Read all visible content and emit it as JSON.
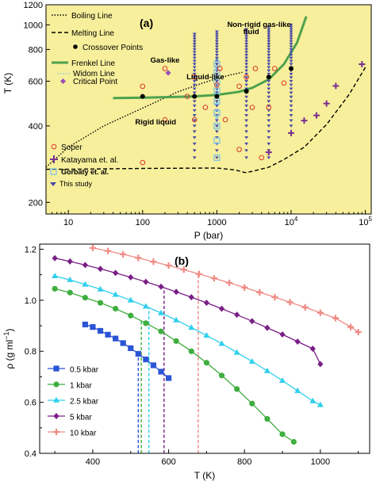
{
  "chart_data": [
    {
      "type": "scatter",
      "panel_label": "(a)",
      "xlabel": "P (bar)",
      "ylabel": "T (K)",
      "xscale": "log",
      "yscale": "log",
      "xlim": [
        5,
        120000
      ],
      "ylim": [
        180,
        1200
      ],
      "background": "#f7ef9b",
      "x_ticks": [
        {
          "v": 10,
          "label": "10"
        },
        {
          "v": 100,
          "label": "100"
        },
        {
          "v": 1000,
          "label": "1000"
        },
        {
          "v": 10000,
          "label": "10",
          "exp": "4"
        },
        {
          "v": 100000,
          "label": "10",
          "exp": "5"
        }
      ],
      "y_ticks": [
        {
          "v": 200,
          "label": "200"
        },
        {
          "v": 400,
          "label": "400"
        },
        {
          "v": 600,
          "label": "600"
        },
        {
          "v": 800,
          "label": "800"
        },
        {
          "v": 1000,
          "label": "1000"
        },
        {
          "v": 1200,
          "label": "1200"
        }
      ],
      "legend_top": [
        {
          "label": "Boiling Line",
          "style": "dotted-line",
          "color": "#000000"
        },
        {
          "label": "Melting Line",
          "style": "dashed-line",
          "color": "#000000"
        },
        {
          "label": "Crossover Points",
          "style": "dot",
          "color": "#000000"
        },
        {
          "label": "Frenkel Line",
          "style": "line",
          "color": "#4ea24e"
        },
        {
          "label": "Widom Line",
          "style": "x-dashed",
          "color": "#7fc6e6"
        },
        {
          "label": "Critical Point",
          "style": "diamond",
          "color": "#9a4fb8"
        }
      ],
      "legend_bottom": [
        {
          "label": "Soper",
          "style": "open-circle",
          "color": "#d9342b"
        },
        {
          "label": "Katayama et. al.",
          "style": "plus",
          "color": "#7b2f8f"
        },
        {
          "label": "Gorbaty et. al.",
          "style": "open-square",
          "color": "#7fc6e6",
          "bold": true
        },
        {
          "label": "This study",
          "style": "triangle-down",
          "color": "#4a4aa8"
        }
      ],
      "annotations": [
        {
          "text": "Gas-like",
          "x": 200,
          "y": 710
        },
        {
          "text": "Liquid-like",
          "x": 700,
          "y": 610
        },
        {
          "text": "Non-rigid gas-like",
          "x": 3700,
          "y": 980
        },
        {
          "text": "fluid",
          "x": 2900,
          "y": 920
        },
        {
          "text": "Rigid liquid",
          "x": 150,
          "y": 405
        }
      ],
      "boiling_line": {
        "x": [
          5,
          10,
          30,
          100,
          300,
          700,
          1500,
          2200
        ],
        "y": [
          275,
          330,
          400,
          470,
          545,
          595,
          635,
          650
        ]
      },
      "melting_line": {
        "x": [
          5,
          10,
          100,
          1000,
          1800,
          2400,
          3000,
          5000,
          8000,
          15000,
          30000,
          60000,
          100000
        ],
        "y": [
          270,
          270,
          272,
          273,
          268,
          262,
          265,
          275,
          295,
          330,
          405,
          530,
          680
        ]
      },
      "frenkel_line": {
        "x": [
          40,
          100,
          200,
          500,
          1000,
          2000,
          3000,
          5000,
          8000,
          12000,
          16000
        ],
        "y": [
          515,
          517,
          519,
          523,
          530,
          545,
          565,
          610,
          700,
          850,
          1080
        ]
      },
      "critical_point": {
        "x": 221,
        "y": 647
      },
      "crossover_points": {
        "x": [
          100,
          500,
          1000,
          2500,
          5000,
          10000
        ],
        "y": [
          523,
          523,
          523,
          548,
          623,
          673
        ]
      },
      "widom_line": {
        "x": 1000,
        "y": [
          400,
          430,
          460,
          490,
          520,
          550,
          580,
          610,
          640,
          670,
          700,
          730
        ]
      },
      "soper": {
        "x": [
          100,
          100,
          200,
          200,
          400,
          500,
          500,
          700,
          1000,
          1100,
          1300,
          2000,
          2000,
          2500,
          3000,
          3300,
          4000,
          5000,
          6000,
          8000
        ],
        "y": [
          573,
          287,
          423,
          673,
          523,
          423,
          623,
          473,
          580,
          673,
          423,
          573,
          323,
          623,
          473,
          673,
          300,
          473,
          673,
          590
        ]
      },
      "katayama": {
        "x": [
          5000,
          10000,
          15000,
          22000,
          30000,
          40000,
          90000
        ],
        "y": [
          315,
          375,
          420,
          440,
          490,
          575,
          700
        ]
      },
      "gorbaty": {
        "x": 1000,
        "y": [
          300,
          350,
          400,
          450,
          500,
          550,
          600,
          650,
          700
        ]
      },
      "this_study": [
        {
          "x": 500,
          "y": [
            300,
            320,
            340,
            360,
            380,
            400,
            420,
            440,
            460,
            480,
            500,
            520,
            540,
            560,
            580,
            600,
            620,
            640,
            660,
            680,
            700,
            720,
            740,
            760,
            780,
            800,
            820,
            840,
            860,
            880,
            900,
            920
          ]
        },
        {
          "x": 1000,
          "y": [
            300,
            320,
            340,
            360,
            380,
            400,
            420,
            440,
            460,
            480,
            500,
            520,
            540,
            560,
            580,
            600,
            620,
            640,
            660,
            680,
            700,
            720,
            740,
            760,
            780,
            800,
            820,
            840,
            860,
            880,
            900,
            920,
            940
          ]
        },
        {
          "x": 2500,
          "y": [
            300,
            320,
            340,
            360,
            380,
            400,
            420,
            440,
            460,
            480,
            500,
            520,
            540,
            560,
            580,
            600,
            620,
            640,
            660,
            680,
            700,
            720,
            740,
            760,
            780,
            800,
            820,
            840,
            860,
            880,
            900,
            920,
            940,
            960
          ]
        },
        {
          "x": 5000,
          "y": [
            300,
            320,
            340,
            360,
            380,
            400,
            420,
            440,
            460,
            480,
            500,
            520,
            540,
            560,
            580,
            600,
            620,
            640,
            660,
            680,
            700,
            720,
            740,
            760,
            780,
            800,
            820,
            840,
            860,
            880,
            900,
            920,
            940,
            960,
            980
          ]
        },
        {
          "x": 10000,
          "y": [
            400,
            420,
            440,
            460,
            480,
            500,
            520,
            540,
            560,
            580,
            600,
            620,
            640,
            660,
            680,
            700,
            720,
            740,
            760,
            780,
            800,
            820,
            840,
            860,
            880,
            900,
            920,
            940,
            960,
            980,
            1000
          ]
        }
      ]
    },
    {
      "type": "line",
      "panel_label": "(b)",
      "xlabel": "T (K)",
      "ylabel": "ρ (g ml",
      "ylabel_sup": "−1",
      "ylabel_close": ")",
      "xlim": [
        260,
        1130
      ],
      "ylim": [
        0.4,
        1.22
      ],
      "x_ticks": [
        {
          "v": 400,
          "label": "400"
        },
        {
          "v": 600,
          "label": "600"
        },
        {
          "v": 800,
          "label": "800"
        },
        {
          "v": 1000,
          "label": "1000"
        }
      ],
      "y_ticks": [
        {
          "v": 0.4,
          "label": "0.4"
        },
        {
          "v": 0.6,
          "label": "0.6"
        },
        {
          "v": 0.8,
          "label": "0.8"
        },
        {
          "v": 1.0,
          "label": "1.0"
        },
        {
          "v": 1.2,
          "label": "1.2"
        }
      ],
      "series": [
        {
          "name": "0.5 kbar",
          "marker": "square",
          "color": "#2b55d6",
          "x": [
            380,
            400,
            420,
            440,
            460,
            480,
            500,
            520,
            540,
            560,
            580,
            600
          ],
          "y": [
            0.905,
            0.895,
            0.88,
            0.865,
            0.85,
            0.832,
            0.812,
            0.79,
            0.768,
            0.745,
            0.72,
            0.695
          ],
          "crossover_T": 520
        },
        {
          "name": "1 kbar",
          "marker": "circle",
          "color": "#3fae3f",
          "x": [
            300,
            340,
            380,
            420,
            460,
            500,
            540,
            580,
            620,
            660,
            700,
            740,
            780,
            820,
            860,
            900,
            930
          ],
          "y": [
            1.045,
            1.03,
            1.01,
            0.99,
            0.967,
            0.94,
            0.91,
            0.878,
            0.84,
            0.8,
            0.755,
            0.705,
            0.652,
            0.595,
            0.535,
            0.475,
            0.445
          ],
          "crossover_T": 528
        },
        {
          "name": "2.5 kbar",
          "marker": "triangle",
          "color": "#2fd0ec",
          "x": [
            300,
            340,
            380,
            420,
            460,
            500,
            540,
            580,
            620,
            660,
            700,
            740,
            780,
            820,
            860,
            900,
            940,
            980,
            1000
          ],
          "y": [
            1.095,
            1.08,
            1.062,
            1.043,
            1.022,
            1.0,
            0.976,
            0.95,
            0.922,
            0.893,
            0.862,
            0.83,
            0.795,
            0.76,
            0.723,
            0.685,
            0.645,
            0.605,
            0.59
          ],
          "crossover_T": 548
        },
        {
          "name": "5 kbar",
          "marker": "diamond",
          "color": "#7a1f86",
          "x": [
            300,
            340,
            380,
            420,
            460,
            500,
            540,
            580,
            620,
            660,
            700,
            740,
            780,
            820,
            860,
            900,
            940,
            980,
            1000
          ],
          "y": [
            1.165,
            1.152,
            1.138,
            1.123,
            1.107,
            1.09,
            1.072,
            1.053,
            1.033,
            1.012,
            0.99,
            0.967,
            0.943,
            0.918,
            0.892,
            0.866,
            0.838,
            0.81,
            0.75
          ],
          "crossover_T": 588
        },
        {
          "name": "10 kbar",
          "marker": "plus",
          "color": "#f08a84",
          "x": [
            400,
            440,
            480,
            520,
            560,
            600,
            640,
            680,
            720,
            760,
            800,
            840,
            880,
            920,
            960,
            1000,
            1040,
            1080,
            1100
          ],
          "y": [
            1.205,
            1.193,
            1.18,
            1.166,
            1.151,
            1.136,
            1.12,
            1.103,
            1.086,
            1.068,
            1.05,
            1.031,
            1.012,
            0.992,
            0.972,
            0.951,
            0.93,
            0.895,
            0.875
          ],
          "crossover_T": 678
        }
      ]
    }
  ]
}
